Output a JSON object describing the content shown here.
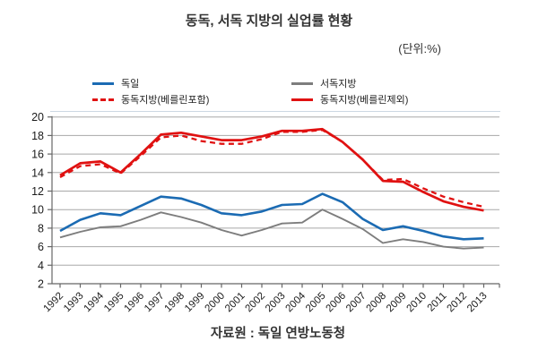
{
  "title": "동독, 서독 지방의 실업률 현황",
  "unit_label": "(단위:%)",
  "source_label": "자료원 : 독일 연방노동청",
  "colors": {
    "blue": "#1b6bb3",
    "red": "#e01111",
    "gray": "#7d7d7d",
    "gridline": "#a8a8a8",
    "axis": "#666666",
    "tick_text": "#1a1a1a"
  },
  "chart_data": {
    "type": "line",
    "title": "동독, 서독 지방의 실업률 현황",
    "unit": "%",
    "categories": [
      1992,
      1993,
      1994,
      1995,
      1996,
      1997,
      1998,
      1999,
      2000,
      2001,
      2002,
      2003,
      2004,
      2005,
      2006,
      2007,
      2008,
      2009,
      2010,
      2011,
      2012,
      2013
    ],
    "series": [
      {
        "name": "독일",
        "color": "#1b6bb3",
        "style": "solid",
        "width": 2.6,
        "values": [
          7.7,
          8.9,
          9.6,
          9.4,
          10.4,
          11.4,
          11.2,
          10.5,
          9.6,
          9.4,
          9.8,
          10.5,
          10.6,
          11.7,
          10.8,
          9.0,
          7.8,
          8.2,
          7.7,
          7.1,
          6.8,
          6.9
        ]
      },
      {
        "name": "동독지방(베를린포함)",
        "color": "#e01111",
        "style": "dashed",
        "width": 2.3,
        "values": [
          13.5,
          14.7,
          14.9,
          13.9,
          15.8,
          17.8,
          18.0,
          17.4,
          17.1,
          17.1,
          17.6,
          18.4,
          18.4,
          18.6,
          17.3,
          15.4,
          13.2,
          13.3,
          12.3,
          11.4,
          10.8,
          10.3
        ]
      },
      {
        "name": "서독지방",
        "color": "#7d7d7d",
        "style": "solid",
        "width": 1.9,
        "values": [
          7.0,
          7.6,
          8.1,
          8.2,
          8.9,
          9.7,
          9.2,
          8.6,
          7.8,
          7.2,
          7.8,
          8.5,
          8.6,
          10.0,
          9.0,
          7.9,
          6.4,
          6.8,
          6.5,
          6.0,
          5.8,
          5.9
        ]
      },
      {
        "name": "동독지방(베를린제외)",
        "color": "#e01111",
        "style": "solid",
        "width": 2.7,
        "values": [
          13.7,
          15.0,
          15.2,
          14.0,
          16.0,
          18.1,
          18.3,
          17.9,
          17.5,
          17.5,
          17.9,
          18.5,
          18.5,
          18.7,
          17.3,
          15.4,
          13.1,
          13.0,
          11.9,
          10.9,
          10.3,
          9.9
        ]
      }
    ],
    "ylim": [
      2,
      20
    ],
    "ytick_step": 2,
    "grid": "horizontal",
    "legend_position": "top"
  }
}
